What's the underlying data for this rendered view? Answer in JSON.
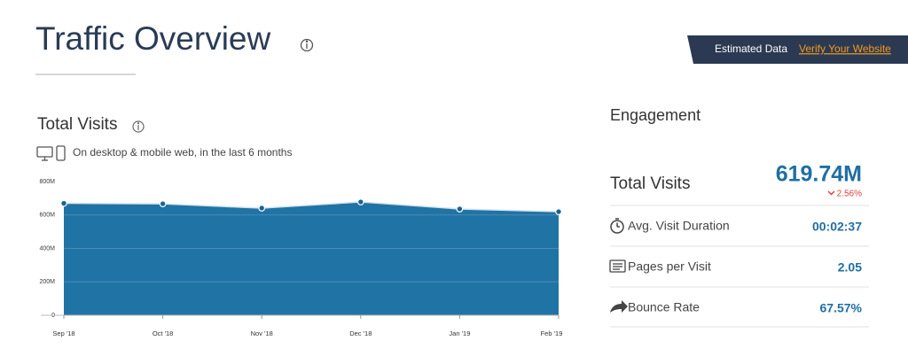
{
  "header": {
    "title": "Traffic Overview",
    "banner_text": "Estimated Data",
    "banner_link": "Verify Your Website"
  },
  "chart_data": {
    "type": "area",
    "title": "Total Visits",
    "subtitle": "On desktop & mobile web, in the last 6 months",
    "categories": [
      "Sep '18",
      "Oct '18",
      "Nov '18",
      "Dec '18",
      "Jan '19",
      "Feb '19"
    ],
    "values": [
      670000000,
      667000000,
      641000000,
      678000000,
      636000000,
      619740000
    ],
    "color": "#2073a5",
    "ylim": [
      0,
      800000000
    ],
    "yticks": [
      0,
      {
        "value": 200000000,
        "label": "200M"
      },
      {
        "value": 400000000,
        "label": "400M"
      },
      {
        "value": 600000000,
        "label": "600M"
      },
      {
        "value": 800000000,
        "label": "800M"
      }
    ],
    "grid": true
  },
  "engagement": {
    "title": "Engagement",
    "total_visits": {
      "label": "Total Visits",
      "value": "619.74M",
      "change": "2.56%"
    },
    "metrics": [
      {
        "label": "Avg. Visit Duration",
        "value": "00:02:37"
      },
      {
        "label": "Pages per Visit",
        "value": "2.05"
      },
      {
        "label": "Bounce Rate",
        "value": "67.57%"
      }
    ]
  }
}
